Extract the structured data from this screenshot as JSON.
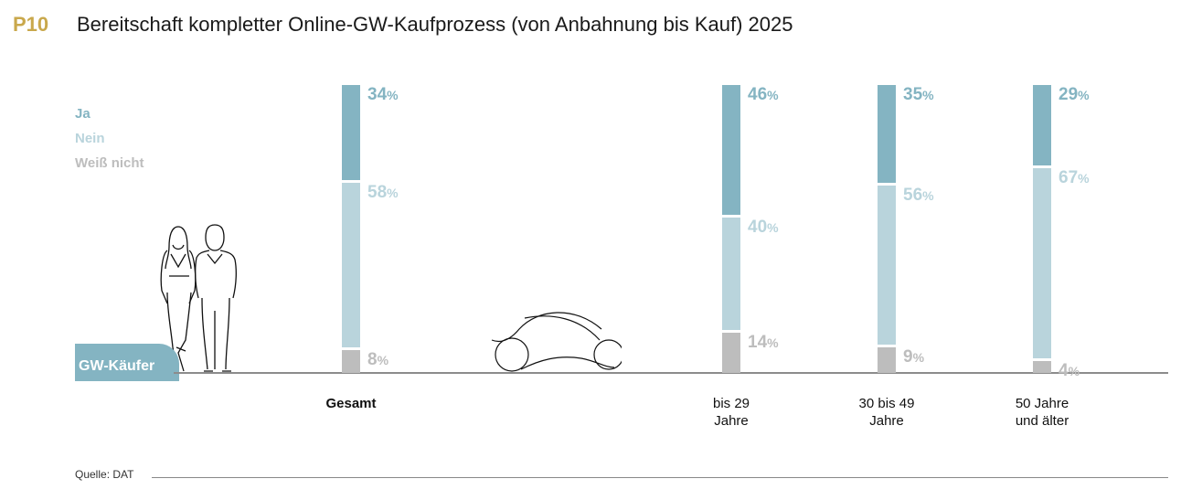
{
  "header": {
    "code": "P10",
    "title": "Bereitschaft kompletter Online-GW-Kaufprozess (von Anbahnung bis Kauf) 2025"
  },
  "badge": "GW-Käufer",
  "source": "Quelle: DAT",
  "chart_data": {
    "type": "bar",
    "stacked": true,
    "title": "Bereitschaft kompletter Online-GW-Kaufprozess (von Anbahnung bis Kauf) 2025",
    "legend_placement": "left",
    "unit": "%",
    "categories": [
      [
        "Gesamt"
      ],
      [
        "bis 29",
        "Jahre"
      ],
      [
        "30 bis 49",
        "Jahre"
      ],
      [
        "50 Jahre",
        "und älter"
      ]
    ],
    "category_bold": [
      true,
      false,
      false,
      false
    ],
    "series": [
      {
        "name": "Ja",
        "color": "#84b4c2",
        "values": [
          34,
          46,
          35,
          29
        ]
      },
      {
        "name": "Nein",
        "color": "#b9d4dc",
        "values": [
          58,
          40,
          56,
          67
        ]
      },
      {
        "name": "Weiß nicht",
        "color": "#bdbdbd",
        "values": [
          8,
          14,
          9,
          4
        ]
      }
    ],
    "ylim": [
      0,
      100
    ]
  },
  "icons": {
    "people": "couple-illustration",
    "car": "car-illustration"
  }
}
